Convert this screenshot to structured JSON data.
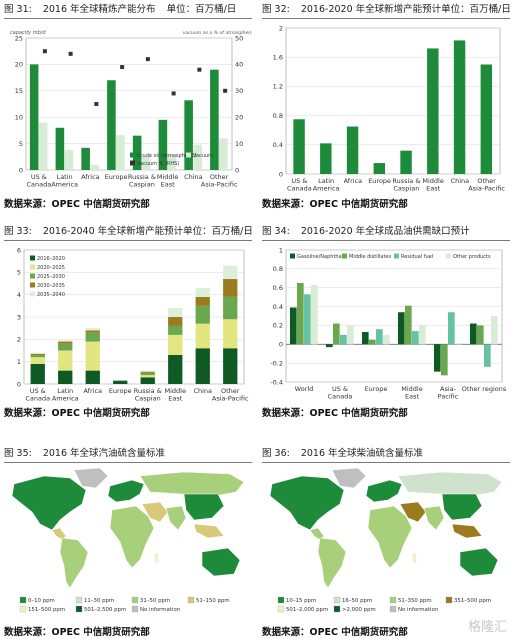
{
  "panels": [
    {
      "fig": "图  31:",
      "title": "2016 年全球精炼产能分布",
      "unit": "单位：百万桶/日",
      "source": "数据来源：OPEC  中信期货研究部"
    },
    {
      "fig": "图  32:",
      "title": "2016-2020 年全球新增产能预计单位：百万桶/日",
      "unit": "",
      "source": "数据来源：OPEC  中信期货研究部"
    },
    {
      "fig": "图  33:",
      "title": "2016-2040 年全球新增产能预计单位：百万桶/日",
      "unit": "",
      "source": "数据来源：OPEC  中信期货研究部"
    },
    {
      "fig": "图  34:",
      "title": "2016-2020 年全球成品油供需缺口预计",
      "unit": "",
      "source": "数据来源：OPEC  中信期货研究部"
    },
    {
      "fig": "图  35:",
      "title": "2016 年全球汽油硫含量标准",
      "unit": "",
      "source": "数据来源：OPEC  中信期货研究部"
    },
    {
      "fig": "图  36:",
      "title": "2016 年全球柴油硫含量标准",
      "unit": "",
      "source": "数据来源：OPEC  中信期货研究部"
    }
  ],
  "watermark": "格隆汇",
  "chart_data": [
    {
      "type": "bar",
      "categories": [
        "US &\nCanada",
        "Latin\nAmerica",
        "Africa",
        "Europe",
        "Russia &\nCaspian",
        "Middle\nEast",
        "China",
        "Other\nAsia-Pacific"
      ],
      "ylabel": "capacity mb/d",
      "y2label": "vacuum as a % of atmospheric",
      "ylim": [
        0,
        25
      ],
      "y2lim": [
        0,
        50
      ],
      "yticks": [
        0,
        5,
        10,
        15,
        20,
        25
      ],
      "y2ticks": [
        0,
        10,
        20,
        30,
        40,
        50
      ],
      "series": [
        {
          "name": "Crude oil (atmospheric)",
          "color": "#1e8b3a",
          "values": [
            20,
            8,
            4.2,
            17,
            6.5,
            9.5,
            13.2,
            19
          ]
        },
        {
          "name": "Vacuum",
          "color": "#d6ecd5",
          "values": [
            9,
            3.8,
            1,
            6.6,
            2.6,
            2.8,
            4.8,
            6
          ]
        },
        {
          "name": "Vacuum % (RHS)",
          "color": "#333333",
          "marker": "square",
          "axis": "right",
          "values": [
            45,
            44,
            25,
            39,
            42,
            29,
            38,
            30
          ]
        }
      ],
      "legend": "bottom-right"
    },
    {
      "type": "bar",
      "categories": [
        "US &\nCanada",
        "Latin\nAmerica",
        "Africa",
        "Europe",
        "Russia &\nCaspian",
        "Middle\nEast",
        "China",
        "Other\nAsia-Pacific"
      ],
      "ylim": [
        0,
        2.0
      ],
      "yticks": [
        0,
        0.4,
        0.8,
        1.2,
        1.6,
        2.0
      ],
      "series": [
        {
          "name": "",
          "color": "#1e8b3a",
          "values": [
            0.75,
            0.42,
            0.65,
            0.15,
            0.32,
            1.72,
            1.83,
            1.5
          ]
        }
      ]
    },
    {
      "type": "bar",
      "stacked": true,
      "categories": [
        "US &\nCanada",
        "Latin\nAmerica",
        "Africa",
        "Europe",
        "Russia &\nCaspian",
        "Middle\nEast",
        "China",
        "Other\nAsia-Pacific"
      ],
      "ylim": [
        0,
        6
      ],
      "yticks": [
        0,
        1,
        2,
        3,
        4,
        5,
        6
      ],
      "series": [
        {
          "name": "2016–2020",
          "color": "#0f5a24",
          "values": [
            0.9,
            0.6,
            0.6,
            0.15,
            0.3,
            1.3,
            1.6,
            1.6
          ]
        },
        {
          "name": "2020–2025",
          "color": "#e3e580",
          "values": [
            0.3,
            0.9,
            1.3,
            0.0,
            0.1,
            0.9,
            1.1,
            1.3
          ]
        },
        {
          "name": "2025–2030",
          "color": "#6aa84f",
          "values": [
            0.1,
            0.3,
            0.4,
            0.0,
            0.1,
            0.4,
            0.8,
            1.0
          ]
        },
        {
          "name": "2030–2035",
          "color": "#9c7a1e",
          "values": [
            0.05,
            0.1,
            0.1,
            0.0,
            0.05,
            0.4,
            0.4,
            0.8
          ]
        },
        {
          "name": "2035–2040",
          "color": "#dcefd9",
          "values": [
            0.05,
            0.05,
            0.1,
            0.0,
            0.05,
            0.4,
            0.4,
            0.6
          ]
        }
      ],
      "legend": "top-left"
    },
    {
      "type": "bar",
      "categories": [
        "World",
        "US &\nCanada",
        "Europe",
        "Middle\nEast",
        "Asia-\nPacific",
        "Other regions"
      ],
      "ylim": [
        -0.4,
        1.0
      ],
      "yticks": [
        -0.4,
        -0.2,
        0,
        0.2,
        0.4,
        0.6,
        0.8,
        1.0
      ],
      "series": [
        {
          "name": "Gasoline/Naphtha",
          "color": "#0f5a24",
          "values": [
            0.39,
            -0.03,
            0.13,
            0.34,
            -0.29,
            0.22
          ]
        },
        {
          "name": "Middle distillates",
          "color": "#6aa84f",
          "values": [
            0.65,
            0.22,
            0.05,
            0.41,
            -0.33,
            0.2
          ]
        },
        {
          "name": "Residual fuel",
          "color": "#66c2a4",
          "values": [
            0.53,
            0.1,
            0.16,
            0.14,
            0.34,
            -0.24
          ]
        },
        {
          "name": "Other products",
          "color": "#d9ecd6",
          "values": [
            0.63,
            0.2,
            0.1,
            0.2,
            0.0,
            0.3
          ]
        }
      ],
      "legend": "top-left"
    },
    {
      "type": "map",
      "legend": [
        {
          "label": "0–10 ppm",
          "color": "#1e8b3a"
        },
        {
          "label": "11–30 ppm",
          "color": "#cfe2cc"
        },
        {
          "label": "31–50 ppm",
          "color": "#a8cf7a"
        },
        {
          "label": "51–150 ppm",
          "color": "#d8c878"
        },
        {
          "label": "151–500 ppm",
          "color": "#eef3c7"
        },
        {
          "label": "501–2,500 ppm",
          "color": "#0f5a24"
        },
        {
          "label": "No information",
          "color": "#bfbfbf"
        }
      ]
    },
    {
      "type": "map",
      "legend": [
        {
          "label": "10–15 ppm",
          "color": "#1e8b3a"
        },
        {
          "label": "16–50 ppm",
          "color": "#cfe2cc"
        },
        {
          "label": "51–350 ppm",
          "color": "#a8cf7a"
        },
        {
          "label": "351–500 ppm",
          "color": "#9c7a1e"
        },
        {
          "label": "501–2,000 ppm",
          "color": "#eef3c7"
        },
        {
          "label": ">2,000 ppm",
          "color": "#0f5a24"
        },
        {
          "label": "No information",
          "color": "#bfbfbf"
        }
      ]
    }
  ]
}
